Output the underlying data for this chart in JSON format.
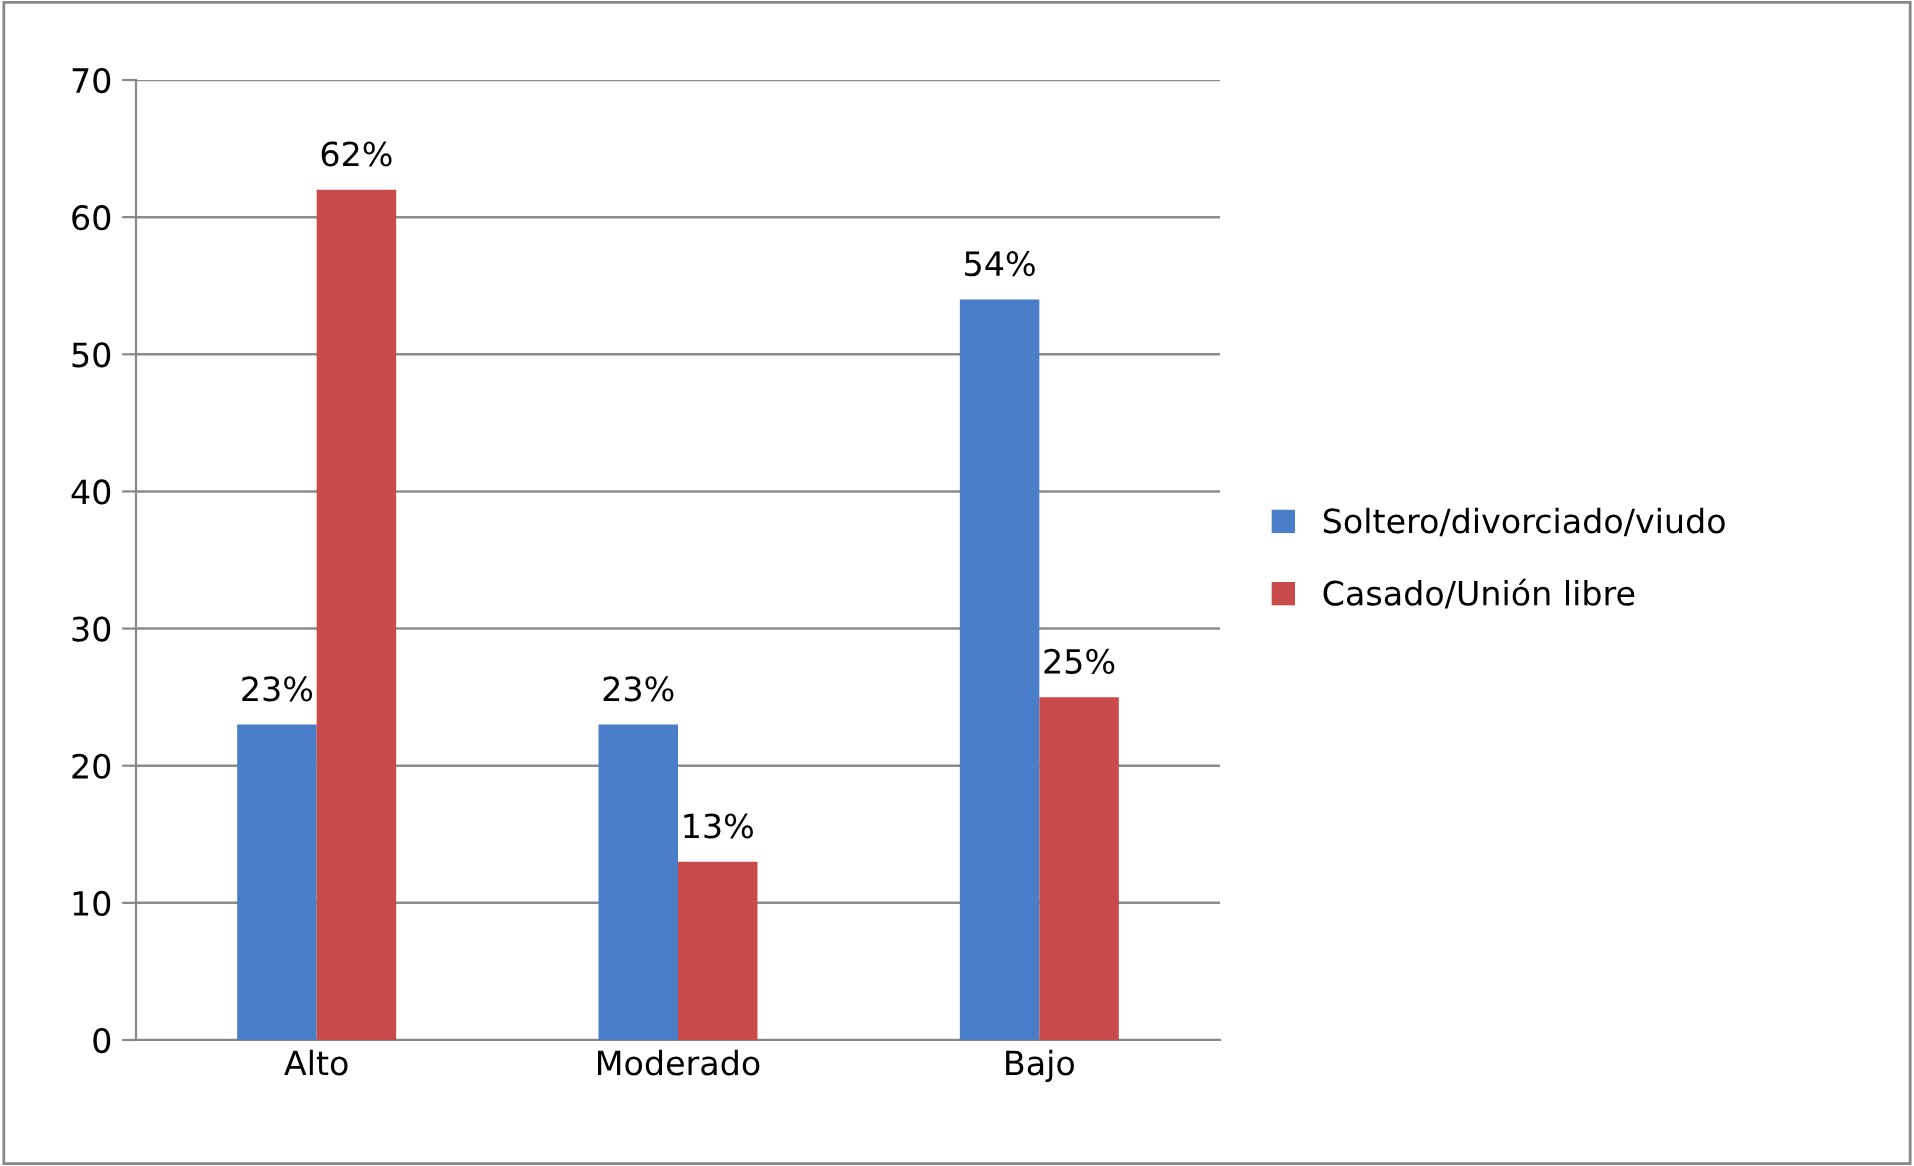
{
  "chart_data": {
    "type": "bar",
    "categories": [
      "Alto",
      "Moderado",
      "Bajo"
    ],
    "series": [
      {
        "name": "Soltero/divorciado/viudo",
        "color": "#4a7ec8",
        "values": [
          23,
          23,
          54
        ],
        "value_labels": [
          "23%",
          "23%",
          "54%"
        ]
      },
      {
        "name": "Casado/Unión libre",
        "color": "#c84a4a",
        "values": [
          62,
          13,
          25
        ],
        "value_labels": [
          "62%",
          "13%",
          "25%"
        ]
      }
    ],
    "ylim": [
      0,
      70
    ],
    "yticks": [
      0,
      10,
      20,
      30,
      40,
      50,
      60,
      70
    ],
    "grid": "y",
    "legend": "right"
  }
}
